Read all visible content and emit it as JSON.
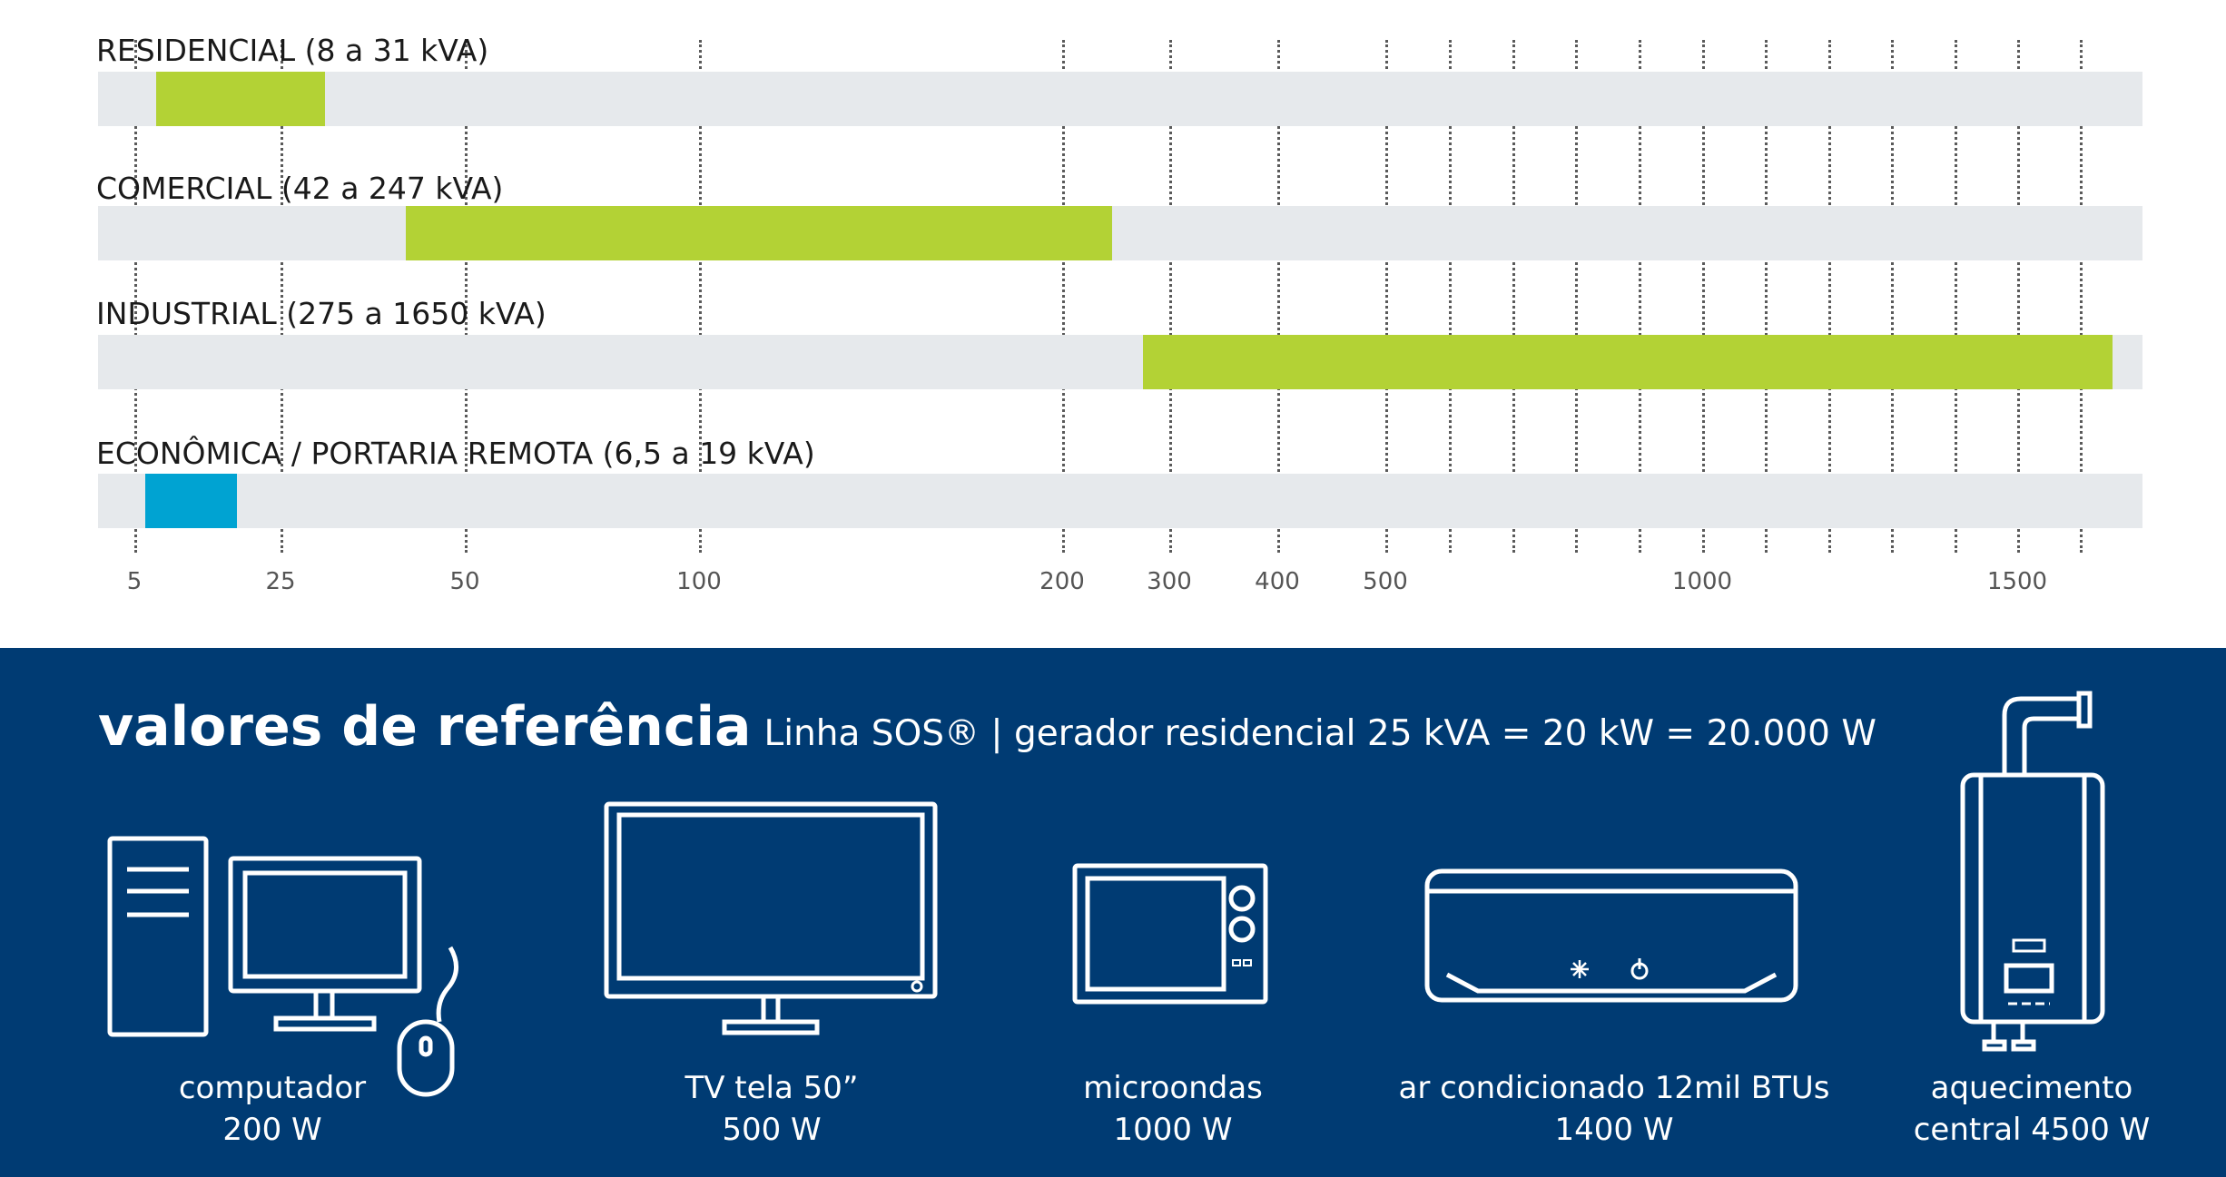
{
  "chart_data": {
    "type": "bar",
    "orientation": "horizontal-range",
    "unit": "kVA",
    "categories": [
      "RESIDENCIAL (8 a 31 kVA)",
      "COMERCIAL (42 a 247 kVA)",
      "INDUSTRIAL (275 a 1650 kVA)",
      "ECONÔMICA / PORTARIA REMOTA (6,5 a 19 kVA)"
    ],
    "ranges": [
      {
        "min": 8,
        "max": 31,
        "color": "#b3d235"
      },
      {
        "min": 42,
        "max": 247,
        "color": "#b3d235"
      },
      {
        "min": 275,
        "max": 1650,
        "color": "#b3d235"
      },
      {
        "min": 6.5,
        "max": 19,
        "color": "#00a3d2"
      }
    ],
    "x_ticks": [
      "5",
      "25",
      "50",
      "100",
      "200",
      "300",
      "400",
      "500",
      "1000",
      "1500"
    ],
    "grid": true,
    "track_color": "#e6e9ec"
  },
  "reference": {
    "title": "valores de referência",
    "subtitle": "Linha SOS® | gerador residencial 25 kVA = 20 kW = 20.000 W",
    "background": "#003b73",
    "items": [
      {
        "icon": "computer-icon",
        "line1": "computador",
        "line2": "200 W"
      },
      {
        "icon": "tv-icon",
        "line1": "TV tela 50”",
        "line2": "500 W"
      },
      {
        "icon": "microwave-icon",
        "line1": "microondas",
        "line2": "1000 W"
      },
      {
        "icon": "air-conditioner-icon",
        "line1": "ar condicionado 12mil BTUs",
        "line2": "1400 W"
      },
      {
        "icon": "water-heater-icon",
        "line1": "aquecimento",
        "line2": "central 4500 W"
      }
    ]
  }
}
